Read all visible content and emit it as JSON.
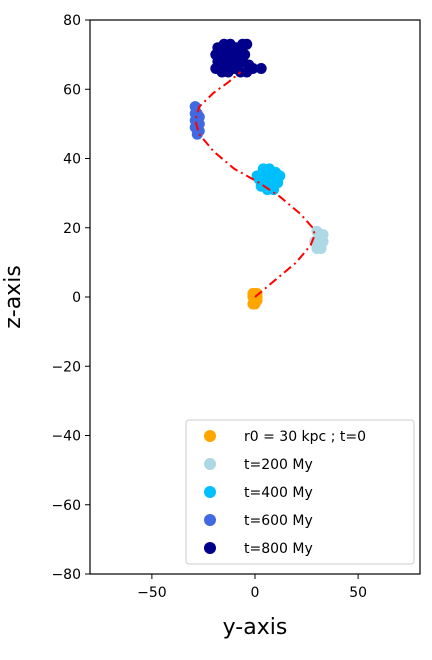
{
  "chart_data": {
    "type": "scatter",
    "title": "",
    "xlabel": "y-axis",
    "ylabel": "z-axis",
    "xlim": [
      -80,
      80
    ],
    "ylim": [
      -80,
      80
    ],
    "xticks": [
      -50,
      0,
      50
    ],
    "yticks": [
      80,
      60,
      40,
      20,
      0,
      -20,
      -40,
      -60,
      -80
    ],
    "grid": false,
    "legend_position": "lower-right",
    "series": [
      {
        "name": "r0 = 30 kpc ; t=0",
        "color": "#ffa500",
        "points": [
          [
            -1,
            1
          ],
          [
            0,
            0
          ],
          [
            1,
            -1
          ],
          [
            -1,
            -2
          ],
          [
            0,
            -2
          ],
          [
            1,
            0
          ],
          [
            0,
            1
          ],
          [
            -1,
            0
          ],
          [
            1,
            1
          ]
        ]
      },
      {
        "name": "t=200 My",
        "color": "#add8e6",
        "points": [
          [
            30,
            19
          ],
          [
            32,
            18
          ],
          [
            31,
            16
          ],
          [
            33,
            16
          ],
          [
            30,
            14
          ],
          [
            32,
            14
          ],
          [
            31,
            17
          ],
          [
            29,
            16
          ],
          [
            33,
            18
          ]
        ]
      },
      {
        "name": "t=400 My",
        "color": "#00bfff",
        "points": [
          [
            4,
            37
          ],
          [
            7,
            37
          ],
          [
            10,
            36
          ],
          [
            2,
            34
          ],
          [
            5,
            34
          ],
          [
            8,
            34
          ],
          [
            11,
            33
          ],
          [
            3,
            32
          ],
          [
            6,
            31
          ],
          [
            9,
            31
          ],
          [
            1,
            35
          ],
          [
            12,
            35
          ],
          [
            5,
            36
          ],
          [
            7,
            32
          ]
        ]
      },
      {
        "name": "t=600 My",
        "color": "#4169e1",
        "points": [
          [
            -29,
            55
          ],
          [
            -28,
            53
          ],
          [
            -29,
            51
          ],
          [
            -27,
            50
          ],
          [
            -29,
            49
          ],
          [
            -28,
            47
          ],
          [
            -27,
            48
          ],
          [
            -29,
            53
          ],
          [
            -28,
            50
          ],
          [
            -27,
            52
          ]
        ]
      },
      {
        "name": "t=800 My",
        "color": "#00008b",
        "points": [
          [
            -18,
            72
          ],
          [
            -15,
            73
          ],
          [
            -12,
            73
          ],
          [
            -9,
            72
          ],
          [
            -6,
            73
          ],
          [
            -4,
            73
          ],
          [
            -19,
            70
          ],
          [
            -16,
            70
          ],
          [
            -13,
            71
          ],
          [
            -10,
            70
          ],
          [
            -7,
            71
          ],
          [
            -5,
            70
          ],
          [
            -18,
            68
          ],
          [
            -15,
            67
          ],
          [
            -12,
            68
          ],
          [
            -9,
            67
          ],
          [
            -6,
            68
          ],
          [
            -3,
            67
          ],
          [
            -19,
            66
          ],
          [
            -16,
            65
          ],
          [
            -13,
            65
          ],
          [
            -10,
            66
          ],
          [
            -7,
            65
          ],
          [
            -4,
            65
          ],
          [
            3,
            66
          ],
          [
            -1,
            66
          ],
          [
            -14,
            69
          ],
          [
            -8,
            69
          ]
        ]
      }
    ],
    "trajectory": {
      "color": "#ff0000",
      "style": "dash-dot",
      "x": [
        0,
        10,
        20,
        27,
        29,
        28,
        22,
        12,
        2,
        -10,
        -20,
        -27,
        -29,
        -27,
        -20,
        -13,
        -7
      ],
      "y": [
        0,
        5,
        10,
        15,
        18,
        20,
        24,
        29,
        33,
        37,
        42,
        47,
        51,
        55,
        59,
        62,
        65
      ]
    }
  }
}
